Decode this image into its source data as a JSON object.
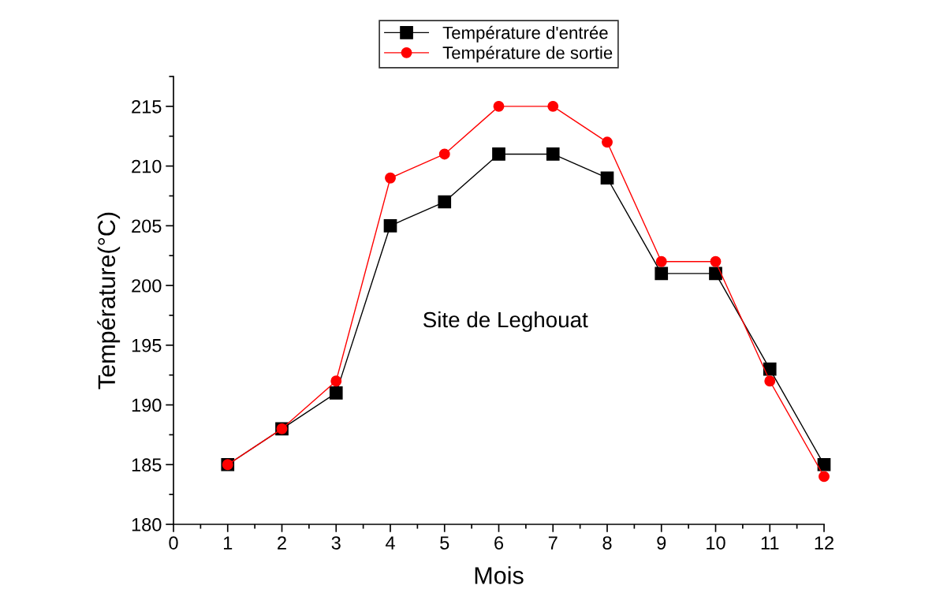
{
  "chart_data": {
    "type": "line",
    "xlabel": "Mois",
    "ylabel": "Température(°C)",
    "x": [
      1,
      2,
      3,
      4,
      5,
      6,
      7,
      8,
      9,
      10,
      11,
      12
    ],
    "series": [
      {
        "name": "Température d'entrée",
        "color": "#000000",
        "marker": "square",
        "values": [
          185,
          188,
          191,
          205,
          207,
          211,
          211,
          209,
          201,
          201,
          193,
          185
        ]
      },
      {
        "name": "Température de sortie",
        "color": "#ff0000",
        "marker": "circle",
        "values": [
          185,
          188,
          192,
          209,
          211,
          215,
          215,
          212,
          202,
          202,
          192,
          184
        ]
      }
    ],
    "xlim": [
      0,
      12
    ],
    "xticks": [
      0,
      1,
      2,
      3,
      4,
      5,
      6,
      7,
      8,
      9,
      10,
      11,
      12
    ],
    "ylim": [
      180,
      217.5
    ],
    "yticks": [
      180,
      185,
      190,
      195,
      200,
      205,
      210,
      215
    ],
    "annotations": [
      "Site de Leghouat"
    ],
    "legend": "top",
    "grid": false,
    "line_style": "solid"
  }
}
